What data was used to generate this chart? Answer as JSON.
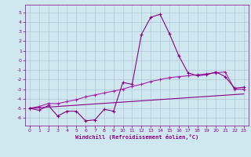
{
  "xlabel": "Windchill (Refroidissement éolien,°C)",
  "xlim": [
    -0.5,
    23.5
  ],
  "ylim": [
    -6.8,
    5.8
  ],
  "yticks": [
    5,
    4,
    3,
    2,
    1,
    0,
    -1,
    -2,
    -3,
    -4,
    -5,
    -6
  ],
  "xticks": [
    0,
    1,
    2,
    3,
    4,
    5,
    6,
    7,
    8,
    9,
    10,
    11,
    12,
    13,
    14,
    15,
    16,
    17,
    18,
    19,
    20,
    21,
    22,
    23
  ],
  "bg_color": "#cfe8f0",
  "grid_color": "#b0c8d8",
  "line_color": "#880088",
  "line_color2": "#aa22aa",
  "series1_x": [
    0,
    1,
    2,
    3,
    4,
    5,
    6,
    7,
    8,
    9,
    10,
    11,
    12,
    13,
    14,
    15,
    16,
    17,
    18,
    19,
    20,
    21,
    22,
    23
  ],
  "series1_y": [
    -5.0,
    -5.2,
    -4.7,
    -5.8,
    -5.3,
    -5.3,
    -6.3,
    -6.2,
    -5.1,
    -5.3,
    -2.3,
    -2.5,
    2.7,
    4.5,
    4.8,
    2.8,
    0.5,
    -1.3,
    -1.6,
    -1.5,
    -1.2,
    -1.7,
    -2.9,
    -2.8
  ],
  "series2_x": [
    0,
    1,
    2,
    3,
    4,
    5,
    6,
    7,
    8,
    9,
    10,
    11,
    12,
    13,
    14,
    15,
    16,
    17,
    18,
    19,
    20,
    21,
    22,
    23
  ],
  "series2_y": [
    -5.0,
    -4.8,
    -4.5,
    -4.5,
    -4.3,
    -4.1,
    -3.8,
    -3.6,
    -3.4,
    -3.2,
    -3.0,
    -2.7,
    -2.5,
    -2.2,
    -2.0,
    -1.8,
    -1.7,
    -1.6,
    -1.5,
    -1.4,
    -1.3,
    -1.2,
    -3.0,
    -3.0
  ],
  "series3_x": [
    0,
    23
  ],
  "series3_y": [
    -5.0,
    -3.5
  ],
  "tick_fontsize": 4.5,
  "xlabel_fontsize": 5.0
}
